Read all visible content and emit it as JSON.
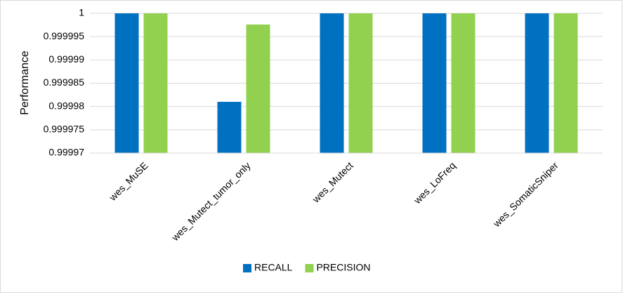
{
  "chart_data": {
    "type": "bar",
    "y_label": "Performance",
    "categories": [
      "wes_MuSE",
      "wes_Mutect_tumor_only",
      "wes_Mutect",
      "wes_LoFreq",
      "wes_SomaticSniper"
    ],
    "series": [
      {
        "name": "RECALL",
        "color": "#0070c0",
        "values": [
          1,
          0.999981,
          1,
          1,
          1
        ]
      },
      {
        "name": "PRECISION",
        "color": "#92d050",
        "values": [
          1,
          0.9999976,
          1,
          1,
          1
        ]
      }
    ],
    "ylim": [
      0.99997,
      1
    ],
    "yticks": [
      0.99997,
      0.999975,
      0.99998,
      0.999985,
      0.99999,
      0.999995,
      1
    ],
    "grid": true,
    "legend": "bottom"
  }
}
